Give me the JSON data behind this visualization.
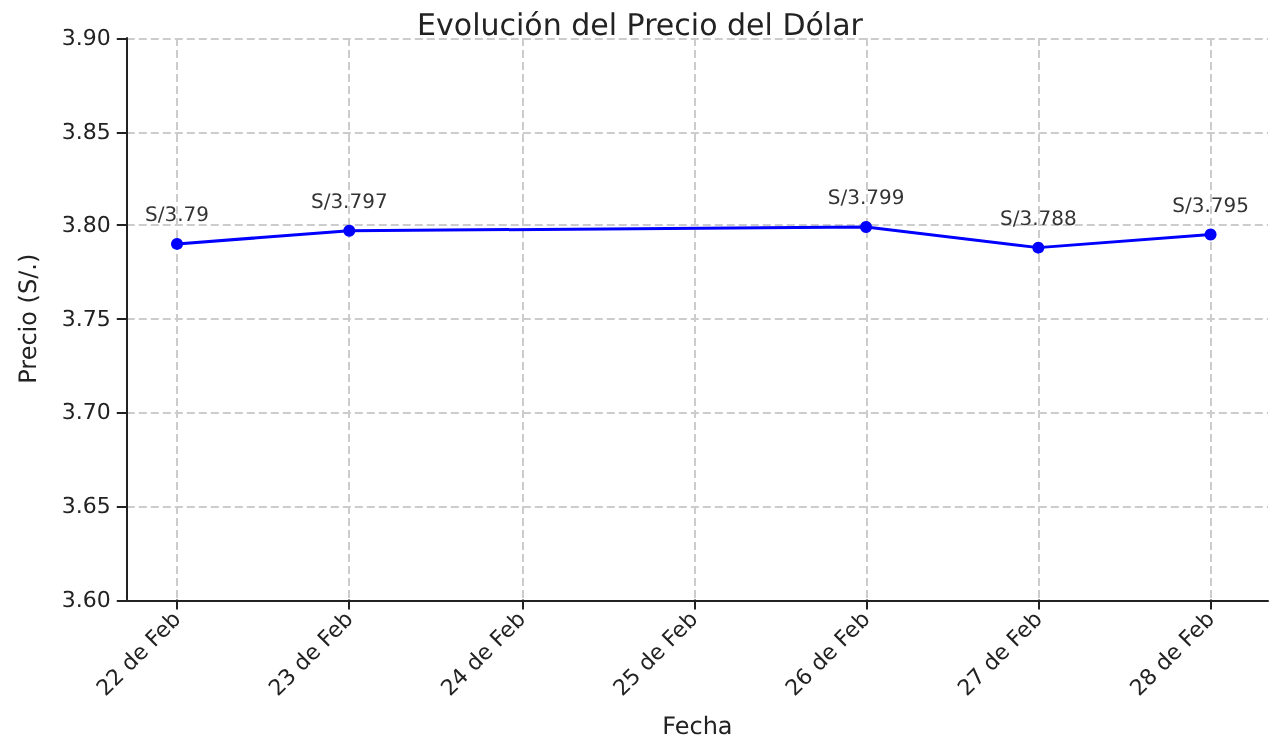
{
  "chart_data": {
    "type": "line",
    "title": "Evolución del Precio del Dólar",
    "xlabel": "Fecha",
    "ylabel": "Precio (S/.)",
    "x": [
      "--02-22",
      "--02-23",
      "--02-26",
      "--02-27",
      "--02-28"
    ],
    "series": [
      {
        "color": "#0000ff",
        "values": [
          3.79,
          3.797,
          3.799,
          3.788,
          3.795
        ],
        "value_labels": [
          "S/3.79",
          "S/3.797",
          "S/3.799",
          "S/3.788",
          "S/3.795"
        ]
      }
    ],
    "xlim": [
      "--02-21T17:00",
      "--02-28T08:00"
    ],
    "xticks": [
      {
        "value": "--02-22",
        "label": "22 de Feb"
      },
      {
        "value": "--02-23",
        "label": "23 de Feb"
      },
      {
        "value": "--02-24",
        "label": "24 de Feb"
      },
      {
        "value": "--02-25",
        "label": "25 de Feb"
      },
      {
        "value": "--02-26",
        "label": "26 de Feb"
      },
      {
        "value": "--02-27",
        "label": "27 de Feb"
      },
      {
        "value": "--02-28",
        "label": "28 de Feb"
      }
    ],
    "ylim": [
      3.6,
      3.9
    ],
    "yticks": [
      {
        "value": 3.6,
        "label": "3.60"
      },
      {
        "value": 3.65,
        "label": "3.65"
      },
      {
        "value": 3.7,
        "label": "3.70"
      },
      {
        "value": 3.75,
        "label": "3.75"
      },
      {
        "value": 3.8,
        "label": "3.80"
      },
      {
        "value": 3.85,
        "label": "3.85"
      },
      {
        "value": 3.9,
        "label": "3.90"
      }
    ],
    "grid": true,
    "marker": "circle",
    "line_style": "solid"
  }
}
